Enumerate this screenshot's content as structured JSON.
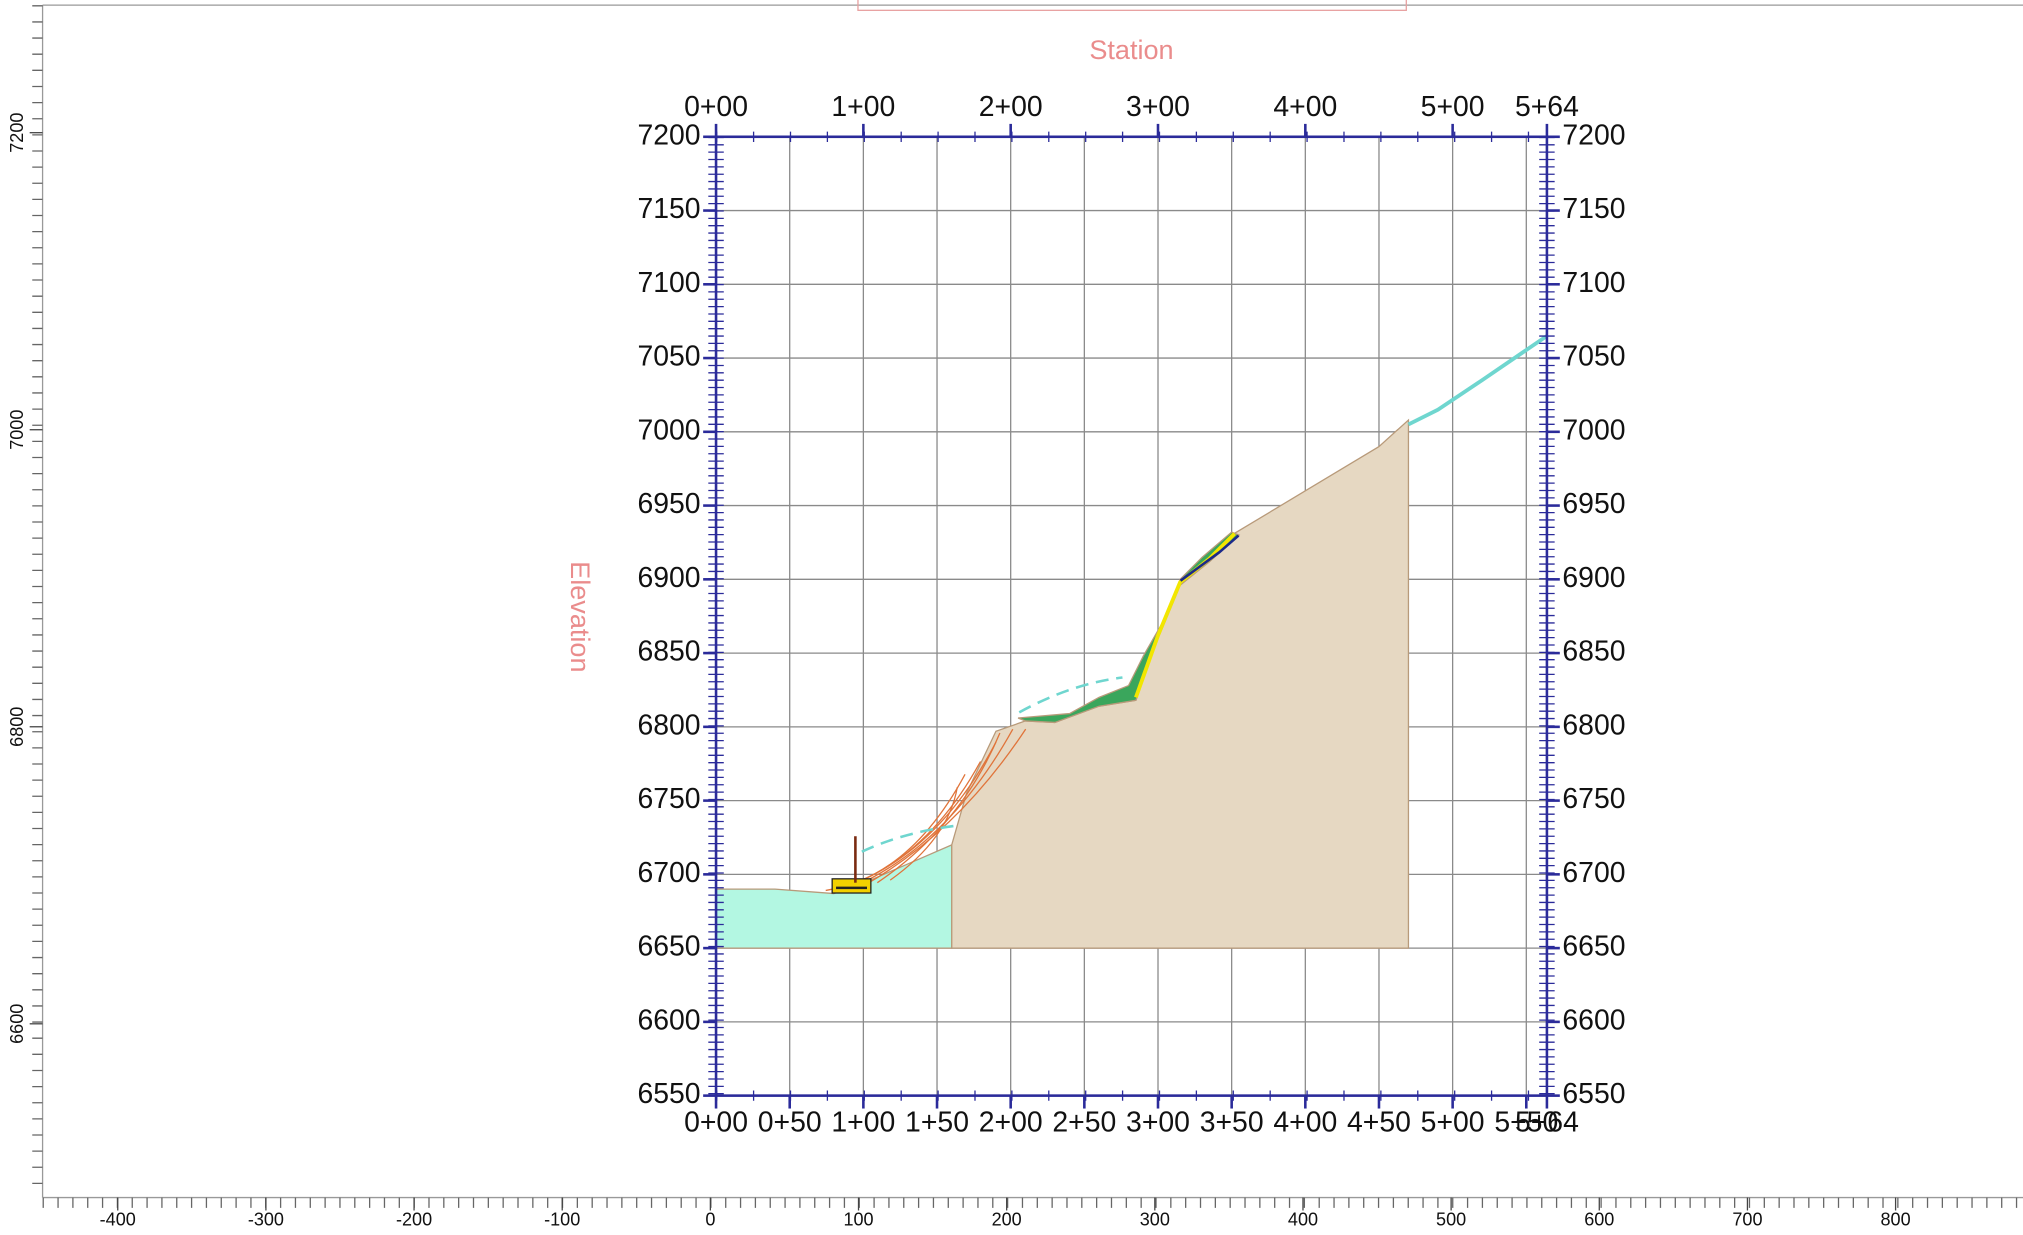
{
  "chart_data": {
    "type": "section",
    "title": "Station",
    "y_label": "Elevation",
    "xlim": [
      0,
      564
    ],
    "ylim": [
      6550,
      7200
    ],
    "top_xticks": [
      {
        "value": 0,
        "label": "0+00"
      },
      {
        "value": 100,
        "label": "1+00"
      },
      {
        "value": 200,
        "label": "2+00"
      },
      {
        "value": 300,
        "label": "3+00"
      },
      {
        "value": 400,
        "label": "4+00"
      },
      {
        "value": 500,
        "label": "5+00"
      },
      {
        "value": 564,
        "label": "5+64"
      }
    ],
    "xticks": [
      {
        "value": 0,
        "label": "0+00"
      },
      {
        "value": 50,
        "label": "0+50"
      },
      {
        "value": 100,
        "label": "1+00"
      },
      {
        "value": 150,
        "label": "1+50"
      },
      {
        "value": 200,
        "label": "2+00"
      },
      {
        "value": 250,
        "label": "2+50"
      },
      {
        "value": 300,
        "label": "3+00"
      },
      {
        "value": 350,
        "label": "3+50"
      },
      {
        "value": 400,
        "label": "4+00"
      },
      {
        "value": 450,
        "label": "4+50"
      },
      {
        "value": 500,
        "label": "5+00"
      },
      {
        "value": 550,
        "label": "5+50"
      },
      {
        "value": 564,
        "label": "5+64"
      }
    ],
    "yticks": [
      6550,
      6600,
      6650,
      6700,
      6750,
      6800,
      6850,
      6900,
      6950,
      7000,
      7050,
      7100,
      7150,
      7200
    ],
    "grid": true,
    "materials": [
      {
        "color": "#b3f7e2",
        "x": [
          0,
          40,
          80,
          100,
          130,
          160,
          160,
          0
        ],
        "y": [
          6690,
          6690,
          6687,
          6694,
          6707,
          6720,
          6650,
          6650
        ]
      },
      {
        "color": "#e6d8c2",
        "x": [
          160,
          170,
          190,
          210,
          230,
          260,
          285,
          300,
          315,
          330,
          350,
          400,
          450,
          470,
          470,
          160
        ],
        "y": [
          6720,
          6755,
          6797,
          6804,
          6803,
          6814,
          6818,
          6860,
          6896,
          6912,
          6930,
          6960,
          6990,
          7008,
          6650,
          6650
        ]
      },
      {
        "color": "#3aa65c",
        "x": [
          205,
          240,
          260,
          280,
          290,
          305,
          315,
          330,
          350,
          355,
          335,
          315,
          300,
          285,
          260,
          230,
          210
        ],
        "y": [
          6806,
          6809,
          6820,
          6828,
          6848,
          6874,
          6900,
          6915,
          6932,
          6930,
          6912,
          6896,
          6860,
          6818,
          6814,
          6803,
          6804
        ]
      }
    ],
    "lines": [
      {
        "color": "#f2e600",
        "x": [
          285,
          300,
          315,
          335,
          352
        ],
        "y": [
          6820,
          6862,
          6898,
          6914,
          6931
        ]
      },
      {
        "color": "#6fd6cf",
        "x": [
          470,
          490,
          520,
          564
        ],
        "y": [
          7005,
          7015,
          7035,
          7065
        ]
      }
    ],
    "ruler_xlim": [
      -449,
      886
    ],
    "ruler_xticks": [
      -400,
      -300,
      -200,
      -100,
      0,
      100,
      200,
      300,
      400,
      500,
      600,
      700,
      800
    ],
    "ruler_ylim": [
      6483,
      7285
    ],
    "ruler_yticks": [
      6600,
      6800,
      7000,
      7200
    ]
  }
}
